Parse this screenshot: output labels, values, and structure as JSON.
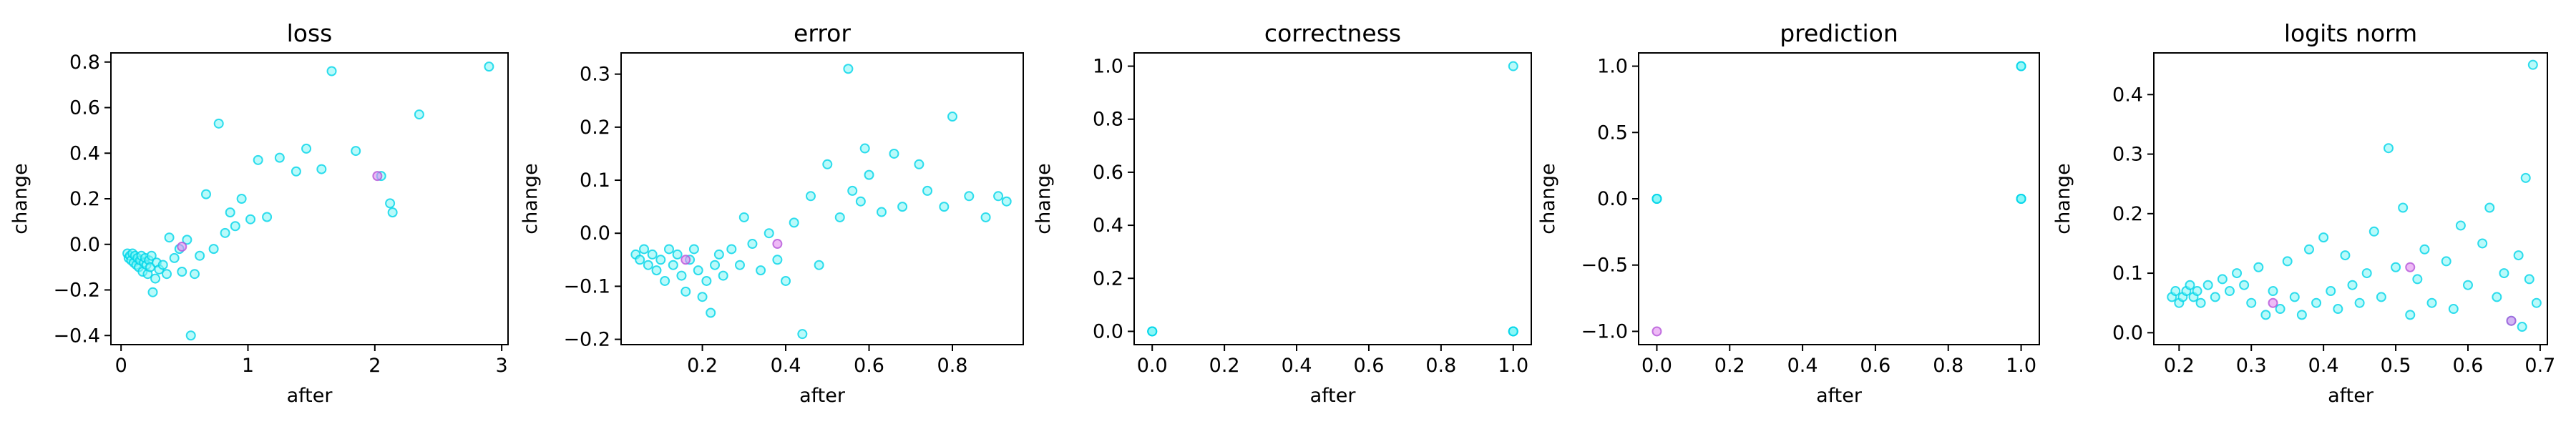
{
  "chart_data": [
    {
      "type": "scatter",
      "title": "loss",
      "xlabel": "after",
      "ylabel": "change",
      "xlim": [
        -0.08,
        3.05
      ],
      "ylim": [
        -0.44,
        0.84
      ],
      "xticks": [
        0,
        1,
        2,
        3
      ],
      "yticks": [
        -0.4,
        -0.2,
        0.0,
        0.2,
        0.4,
        0.6,
        0.8
      ],
      "xtick_labels": [
        "0",
        "1",
        "2",
        "3"
      ],
      "ytick_labels": [
        "−0.4",
        "−0.2",
        "0.0",
        "0.2",
        "0.4",
        "0.6",
        "0.8"
      ],
      "grid": false,
      "points": [
        [
          0.05,
          -0.04
        ],
        [
          0.06,
          -0.06
        ],
        [
          0.07,
          -0.05
        ],
        [
          0.08,
          -0.07
        ],
        [
          0.09,
          -0.04
        ],
        [
          0.1,
          -0.08
        ],
        [
          0.11,
          -0.05
        ],
        [
          0.12,
          -0.09
        ],
        [
          0.13,
          -0.06
        ],
        [
          0.14,
          -0.1
        ],
        [
          0.15,
          -0.07
        ],
        [
          0.16,
          -0.05
        ],
        [
          0.17,
          -0.12
        ],
        [
          0.18,
          -0.08
        ],
        [
          0.19,
          -0.06
        ],
        [
          0.2,
          -0.09
        ],
        [
          0.21,
          -0.13
        ],
        [
          0.22,
          -0.07
        ],
        [
          0.23,
          -0.1
        ],
        [
          0.24,
          -0.05
        ],
        [
          0.25,
          -0.21
        ],
        [
          0.27,
          -0.15
        ],
        [
          0.28,
          -0.08
        ],
        [
          0.3,
          -0.11
        ],
        [
          0.33,
          -0.09
        ],
        [
          0.36,
          -0.13
        ],
        [
          0.38,
          0.03
        ],
        [
          0.42,
          -0.06
        ],
        [
          0.46,
          -0.02
        ],
        [
          0.48,
          -0.12
        ],
        [
          0.52,
          0.02
        ],
        [
          0.55,
          -0.4
        ],
        [
          0.58,
          -0.13
        ],
        [
          0.62,
          -0.05
        ],
        [
          0.67,
          0.22
        ],
        [
          0.73,
          -0.02
        ],
        [
          0.77,
          0.53
        ],
        [
          0.82,
          0.05
        ],
        [
          0.86,
          0.14
        ],
        [
          0.9,
          0.08
        ],
        [
          0.95,
          0.2
        ],
        [
          1.02,
          0.11
        ],
        [
          1.08,
          0.37
        ],
        [
          1.15,
          0.12
        ],
        [
          1.25,
          0.38
        ],
        [
          1.38,
          0.32
        ],
        [
          1.46,
          0.42
        ],
        [
          1.58,
          0.33
        ],
        [
          1.66,
          0.76
        ],
        [
          1.85,
          0.41
        ],
        [
          2.05,
          0.3
        ],
        [
          2.12,
          0.18
        ],
        [
          2.14,
          0.14
        ],
        [
          2.35,
          0.57
        ],
        [
          2.9,
          0.78
        ]
      ],
      "magenta_points": [
        [
          0.48,
          -0.01
        ],
        [
          2.02,
          0.3
        ]
      ]
    },
    {
      "type": "scatter",
      "title": "error",
      "xlabel": "after",
      "ylabel": "change",
      "xlim": [
        0.005,
        0.97
      ],
      "ylim": [
        -0.21,
        0.34
      ],
      "xticks": [
        0.2,
        0.4,
        0.6,
        0.8
      ],
      "yticks": [
        -0.2,
        -0.1,
        0.0,
        0.1,
        0.2,
        0.3
      ],
      "xtick_labels": [
        "0.2",
        "0.4",
        "0.6",
        "0.8"
      ],
      "ytick_labels": [
        "−0.2",
        "−0.1",
        "0.0",
        "0.1",
        "0.2",
        "0.3"
      ],
      "grid": false,
      "points": [
        [
          0.04,
          -0.04
        ],
        [
          0.05,
          -0.05
        ],
        [
          0.06,
          -0.03
        ],
        [
          0.07,
          -0.06
        ],
        [
          0.08,
          -0.04
        ],
        [
          0.09,
          -0.07
        ],
        [
          0.1,
          -0.05
        ],
        [
          0.11,
          -0.09
        ],
        [
          0.12,
          -0.03
        ],
        [
          0.13,
          -0.06
        ],
        [
          0.14,
          -0.04
        ],
        [
          0.15,
          -0.08
        ],
        [
          0.16,
          -0.11
        ],
        [
          0.17,
          -0.05
        ],
        [
          0.18,
          -0.03
        ],
        [
          0.19,
          -0.07
        ],
        [
          0.2,
          -0.12
        ],
        [
          0.21,
          -0.09
        ],
        [
          0.22,
          -0.15
        ],
        [
          0.23,
          -0.06
        ],
        [
          0.24,
          -0.04
        ],
        [
          0.25,
          -0.08
        ],
        [
          0.27,
          -0.03
        ],
        [
          0.29,
          -0.06
        ],
        [
          0.3,
          0.03
        ],
        [
          0.32,
          -0.02
        ],
        [
          0.34,
          -0.07
        ],
        [
          0.36,
          0.0
        ],
        [
          0.38,
          -0.05
        ],
        [
          0.4,
          -0.09
        ],
        [
          0.42,
          0.02
        ],
        [
          0.44,
          -0.19
        ],
        [
          0.46,
          0.07
        ],
        [
          0.48,
          -0.06
        ],
        [
          0.5,
          0.13
        ],
        [
          0.53,
          0.03
        ],
        [
          0.55,
          0.31
        ],
        [
          0.56,
          0.08
        ],
        [
          0.58,
          0.06
        ],
        [
          0.59,
          0.16
        ],
        [
          0.6,
          0.11
        ],
        [
          0.63,
          0.04
        ],
        [
          0.66,
          0.15
        ],
        [
          0.68,
          0.05
        ],
        [
          0.72,
          0.13
        ],
        [
          0.74,
          0.08
        ],
        [
          0.78,
          0.05
        ],
        [
          0.8,
          0.22
        ],
        [
          0.84,
          0.07
        ],
        [
          0.88,
          0.03
        ],
        [
          0.91,
          0.07
        ],
        [
          0.93,
          0.06
        ]
      ],
      "magenta_points": [
        [
          0.38,
          -0.02
        ],
        [
          0.16,
          -0.05
        ]
      ]
    },
    {
      "type": "scatter",
      "title": "correctness",
      "xlabel": "after",
      "ylabel": "change",
      "xlim": [
        -0.05,
        1.05
      ],
      "ylim": [
        -0.05,
        1.05
      ],
      "xticks": [
        0.0,
        0.2,
        0.4,
        0.6,
        0.8,
        1.0
      ],
      "yticks": [
        0.0,
        0.2,
        0.4,
        0.6,
        0.8,
        1.0
      ],
      "xtick_labels": [
        "0.0",
        "0.2",
        "0.4",
        "0.6",
        "0.8",
        "1.0"
      ],
      "ytick_labels": [
        "0.0",
        "0.2",
        "0.4",
        "0.6",
        "0.8",
        "1.0"
      ],
      "grid": false,
      "points": [
        [
          0,
          0
        ],
        [
          0,
          0
        ],
        [
          0,
          0
        ],
        [
          1,
          0
        ],
        [
          1,
          0
        ],
        [
          1,
          0
        ],
        [
          1,
          1
        ]
      ],
      "magenta_points": []
    },
    {
      "type": "scatter",
      "title": "prediction",
      "xlabel": "after",
      "ylabel": "change",
      "xlim": [
        -0.05,
        1.05
      ],
      "ylim": [
        -1.1,
        1.1
      ],
      "xticks": [
        0.0,
        0.2,
        0.4,
        0.6,
        0.8,
        1.0
      ],
      "yticks": [
        -1.0,
        -0.5,
        0.0,
        0.5,
        1.0
      ],
      "xtick_labels": [
        "0.0",
        "0.2",
        "0.4",
        "0.6",
        "0.8",
        "1.0"
      ],
      "ytick_labels": [
        "−1.0",
        "−0.5",
        "0.0",
        "0.5",
        "1.0"
      ],
      "grid": false,
      "points": [
        [
          0,
          0
        ],
        [
          0,
          0
        ],
        [
          0,
          0
        ],
        [
          1,
          0
        ],
        [
          1,
          0
        ],
        [
          1,
          0
        ],
        [
          1,
          1
        ],
        [
          1,
          1
        ]
      ],
      "magenta_points": [
        [
          0,
          -1
        ]
      ]
    },
    {
      "type": "scatter",
      "title": "logits norm",
      "xlabel": "after",
      "ylabel": "change",
      "xlim": [
        0.165,
        0.71
      ],
      "ylim": [
        -0.02,
        0.47
      ],
      "xticks": [
        0.2,
        0.3,
        0.4,
        0.5,
        0.6,
        0.7
      ],
      "yticks": [
        0.0,
        0.1,
        0.2,
        0.3,
        0.4
      ],
      "xtick_labels": [
        "0.2",
        "0.3",
        "0.4",
        "0.5",
        "0.6",
        "0.7"
      ],
      "ytick_labels": [
        "0.0",
        "0.1",
        "0.2",
        "0.3",
        "0.4"
      ],
      "grid": false,
      "points": [
        [
          0.19,
          0.06
        ],
        [
          0.195,
          0.07
        ],
        [
          0.2,
          0.05
        ],
        [
          0.205,
          0.06
        ],
        [
          0.21,
          0.07
        ],
        [
          0.215,
          0.08
        ],
        [
          0.22,
          0.06
        ],
        [
          0.225,
          0.07
        ],
        [
          0.23,
          0.05
        ],
        [
          0.24,
          0.08
        ],
        [
          0.25,
          0.06
        ],
        [
          0.26,
          0.09
        ],
        [
          0.27,
          0.07
        ],
        [
          0.28,
          0.1
        ],
        [
          0.29,
          0.08
        ],
        [
          0.3,
          0.05
        ],
        [
          0.31,
          0.11
        ],
        [
          0.32,
          0.03
        ],
        [
          0.33,
          0.07
        ],
        [
          0.34,
          0.04
        ],
        [
          0.35,
          0.12
        ],
        [
          0.36,
          0.06
        ],
        [
          0.37,
          0.03
        ],
        [
          0.38,
          0.14
        ],
        [
          0.39,
          0.05
        ],
        [
          0.4,
          0.16
        ],
        [
          0.41,
          0.07
        ],
        [
          0.42,
          0.04
        ],
        [
          0.43,
          0.13
        ],
        [
          0.44,
          0.08
        ],
        [
          0.45,
          0.05
        ],
        [
          0.46,
          0.1
        ],
        [
          0.47,
          0.17
        ],
        [
          0.48,
          0.06
        ],
        [
          0.49,
          0.31
        ],
        [
          0.5,
          0.11
        ],
        [
          0.51,
          0.21
        ],
        [
          0.52,
          0.03
        ],
        [
          0.53,
          0.09
        ],
        [
          0.54,
          0.14
        ],
        [
          0.55,
          0.05
        ],
        [
          0.57,
          0.12
        ],
        [
          0.58,
          0.04
        ],
        [
          0.59,
          0.18
        ],
        [
          0.6,
          0.08
        ],
        [
          0.62,
          0.15
        ],
        [
          0.63,
          0.21
        ],
        [
          0.64,
          0.06
        ],
        [
          0.65,
          0.1
        ],
        [
          0.66,
          0.02
        ],
        [
          0.67,
          0.13
        ],
        [
          0.675,
          0.01
        ],
        [
          0.68,
          0.26
        ],
        [
          0.685,
          0.09
        ],
        [
          0.69,
          0.45
        ],
        [
          0.695,
          0.05
        ]
      ],
      "magenta_points": [
        [
          0.52,
          0.11
        ],
        [
          0.66,
          0.02
        ],
        [
          0.33,
          0.05
        ]
      ]
    }
  ],
  "colors": {
    "point_fill": "#7ff5f5",
    "point_stroke": "#00d4e8",
    "point_magenta_fill": "#e28cf0",
    "point_magenta_stroke": "#b455d8",
    "point_overlap_stroke": "#1aa8e0",
    "axis": "#000000",
    "background": "#ffffff"
  }
}
